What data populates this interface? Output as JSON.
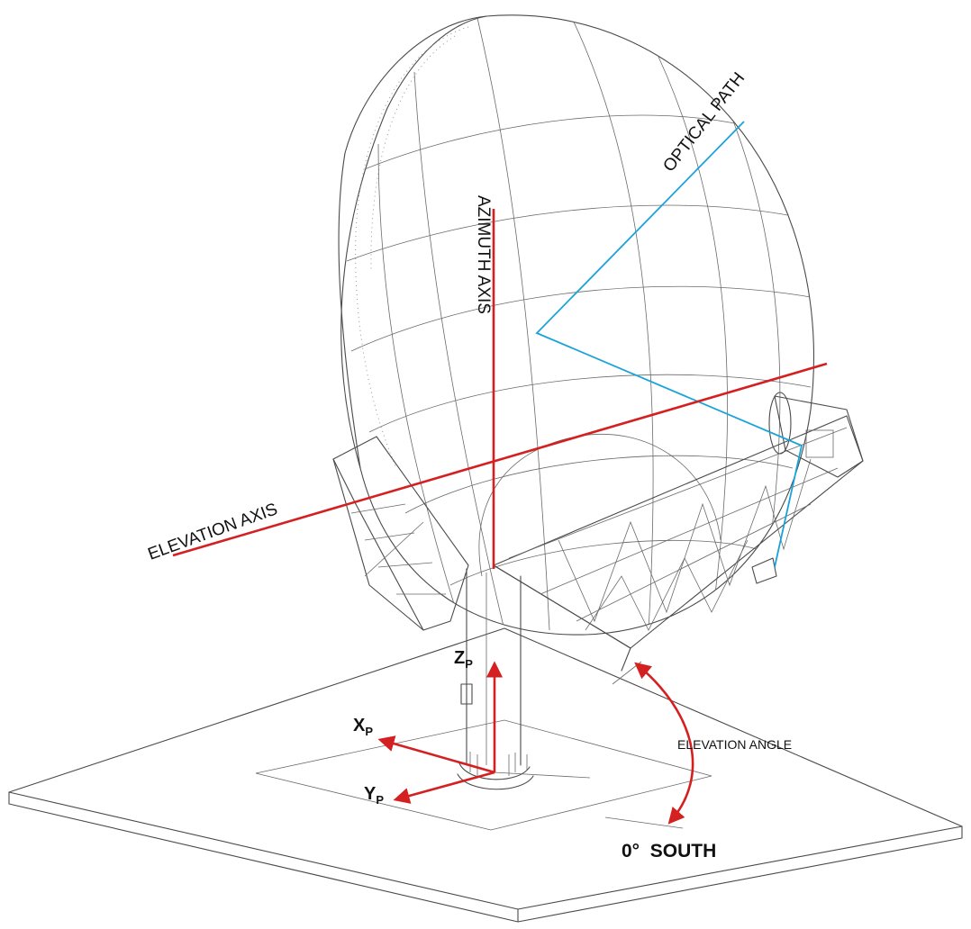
{
  "labels": {
    "optical_path": "OPTICAL PATH",
    "azimuth_axis": "AZIMUTH AXIS",
    "elevation_axis": "ELEVATION AXIS",
    "elevation_angle": "ELEVATION ANGLE",
    "south": "0°  SOUTH",
    "z_main": "Z",
    "z_sub": "P",
    "x_main": "X",
    "x_sub": "P",
    "y_main": "Y",
    "y_sub": "P"
  },
  "colors": {
    "axis_red": "#d42020",
    "optical_blue": "#1aa3d9",
    "drawing_gray": "#4a4a4a"
  }
}
